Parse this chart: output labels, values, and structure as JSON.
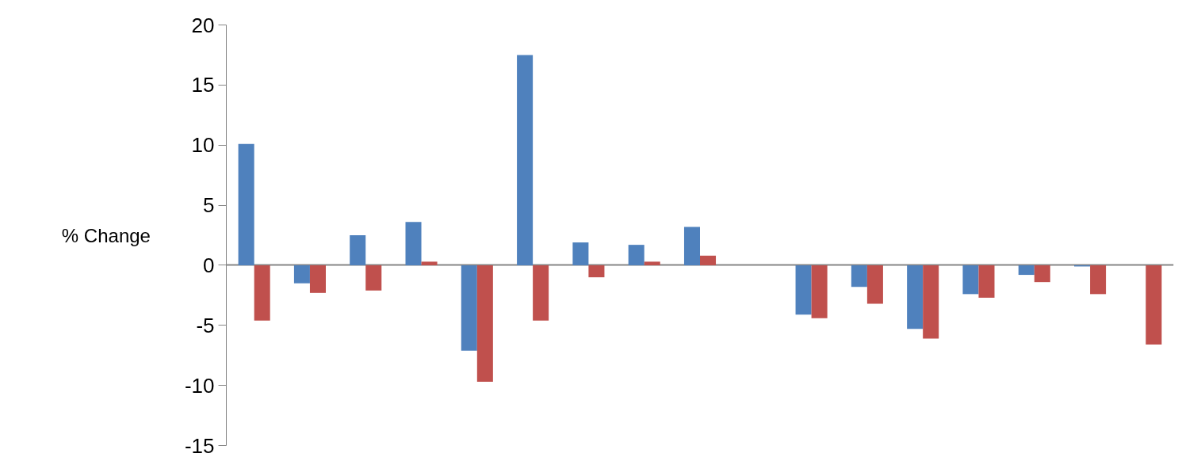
{
  "chart_data": {
    "type": "bar",
    "ylabel": "% Change",
    "categories": [
      null,
      null,
      null,
      null,
      null,
      null,
      null,
      null,
      null,
      null,
      null,
      null,
      null,
      null,
      null,
      null,
      null
    ],
    "series": [
      {
        "color": "#4f81bd",
        "values": [
          10.1,
          -1.5,
          2.5,
          3.6,
          -7.1,
          17.5,
          1.9,
          1.7,
          3.2,
          null,
          -4.1,
          -1.8,
          -5.3,
          -2.4,
          -0.8,
          -0.1,
          null
        ]
      },
      {
        "color": "#c0504d",
        "values": [
          -4.6,
          -2.3,
          -2.1,
          0.3,
          -9.7,
          -4.6,
          -1.0,
          0.3,
          0.8,
          null,
          -4.4,
          -3.2,
          -6.1,
          -2.7,
          -1.4,
          -2.4,
          -6.6
        ]
      }
    ],
    "ylim": [
      -15,
      20
    ],
    "yticks": [
      -15,
      -10,
      -5,
      0,
      5,
      10,
      15,
      20
    ]
  }
}
